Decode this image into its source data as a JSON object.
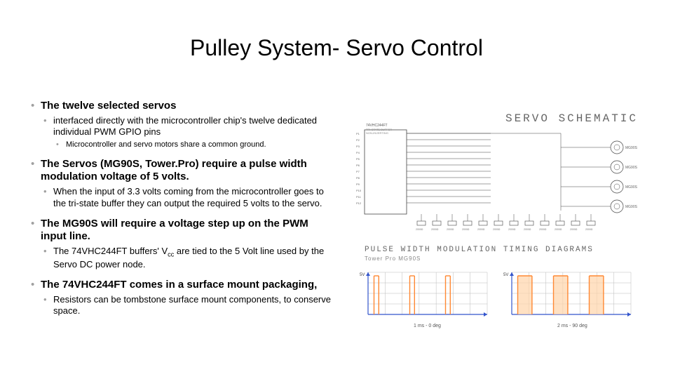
{
  "title": "Pulley System- Servo Control",
  "bullets": {
    "b1": "The twelve selected servos",
    "b1_1": "interfaced directly with the microcontroller chip's twelve dedicated individual PWM GPIO pins",
    "b1_1_1": "Microcontroller and servo motors share a common ground.",
    "b2": "The Servos (MG90S, Tower.Pro) require a pulse width modulation voltage of 5 volts.",
    "b2_1": "When the input of 3.3 volts coming from the microcontroller goes to the tri-state buffer they can output the required 5 volts to the servo.",
    "b3": "The MG90S will require a voltage step up on the PWM input line.",
    "b3_1_a": "The 74VHC244FT buffers' V",
    "b3_1_b": " are tied to the 5 Volt line used by the Servo DC power node.",
    "b4": "The 74VHC244FT comes in a surface mount packaging,",
    "b4_1": "Resistors can be tombstone surface mount components, to conserve space."
  },
  "schematic": {
    "title": "SERVO SCHEMATIC",
    "block_label_top": "74VHC244FT",
    "block_label_sub": "TRI-STATE BUFFER",
    "block_label_sub2": "NON-INVERTING",
    "wire_color": "#444444",
    "block_fill": "#f0f0f0",
    "servo_label": "MG90S",
    "res_value": "2000Ω",
    "pin_labels": [
      "P1",
      "P2",
      "P3",
      "P4",
      "P5",
      "P6",
      "P7",
      "P8",
      "P9",
      "P10",
      "P11",
      "P12"
    ],
    "res_labels": [
      "2000Ω",
      "2000Ω",
      "2000Ω",
      "2000Ω",
      "2000Ω",
      "2000Ω",
      "2000Ω",
      "2000Ω",
      "2000Ω",
      "2000Ω",
      "2000Ω",
      "2000Ω"
    ]
  },
  "timing": {
    "title": "PULSE WIDTH MODULATION TIMING DIAGRAMS",
    "sub": "Tower Pro MG90S",
    "left_caption": "1 ms - 0 deg",
    "right_caption": "2 ms - 90 deg",
    "pulse_color_left": "#ff8833",
    "pulse_color_right": "#ff8833",
    "fill_right": "#ffd4aa",
    "axis_color": "#3355cc",
    "grid_color": "#bbbbbb",
    "bg": "#ffffff",
    "xlim": [
      0,
      70
    ],
    "ylim": [
      0,
      5
    ],
    "y_label": "5V"
  }
}
